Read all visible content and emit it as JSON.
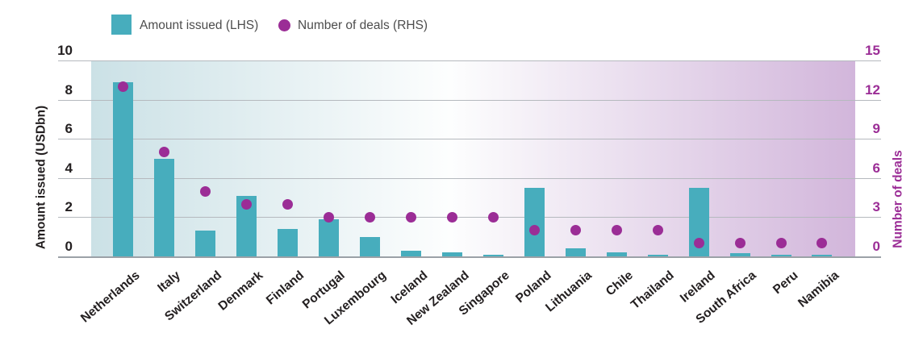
{
  "legend": {
    "amount_label": "Amount issued (LHS)",
    "deals_label": "Number of deals (RHS)"
  },
  "colors": {
    "bar_teal": "#47adbd",
    "dot_purple": "#9b2d96",
    "left_axis_text": "#231f20",
    "right_axis_text": "#9b2d96",
    "legend_text": "#4d4d4d",
    "gridline": "#b5b9be"
  },
  "chart_data": {
    "type": "bar",
    "subtype": "dual-axis bar + scatter dots",
    "categories": [
      "Netherlands",
      "Italy",
      "Switzerland",
      "Denmark",
      "Finland",
      "Portugal",
      "Luxembourg",
      "Iceland",
      "New Zealand",
      "Singapore",
      "Poland",
      "Lithuania",
      "Chile",
      "Thailand",
      "Ireland",
      "South Africa",
      "Peru",
      "Namibia"
    ],
    "series": [
      {
        "name": "Amount issued (LHS)",
        "type": "bar",
        "axis": "left",
        "unit": "USDbn",
        "color": "#47adbd",
        "values": [
          8.9,
          5.0,
          1.3,
          3.1,
          1.4,
          1.9,
          1.0,
          0.3,
          0.2,
          0.1,
          3.5,
          0.4,
          0.2,
          0.1,
          3.5,
          0.15,
          0.1,
          0.1
        ]
      },
      {
        "name": "Number of deals (RHS)",
        "type": "scatter",
        "axis": "right",
        "color": "#9b2d96",
        "values": [
          13,
          8,
          5,
          4,
          4,
          3,
          3,
          3,
          3,
          3,
          2,
          2,
          2,
          2,
          1,
          1,
          1,
          1
        ]
      }
    ],
    "left_axis": {
      "label": "Amount issued (USDbn)",
      "range": [
        0,
        10
      ],
      "ticks": [
        0,
        2,
        4,
        6,
        8,
        10
      ]
    },
    "right_axis": {
      "label": "Number of deals",
      "range": [
        0,
        15
      ],
      "ticks": [
        0,
        3,
        6,
        9,
        12,
        15
      ]
    },
    "grid": true,
    "legend_position": "top",
    "background_gradient": {
      "left": "#cbe1e6",
      "middle": "#fdfefe",
      "right": "#d2b6db"
    }
  }
}
